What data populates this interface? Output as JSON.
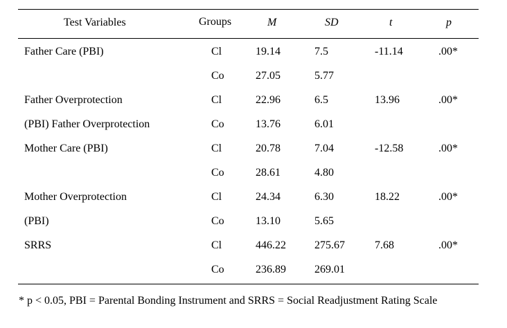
{
  "table": {
    "headers": {
      "variable": "Test Variables",
      "groups": "Groups",
      "m": "M",
      "sd": "SD",
      "t": "t",
      "p": "p"
    },
    "rows": [
      {
        "variable": "Father Care (PBI)",
        "group": "Cl",
        "m": "19.14",
        "sd": "7.5",
        "t": "-11.14",
        "p": ".00*"
      },
      {
        "variable": "",
        "group": "Co",
        "m": "27.05",
        "sd": "5.77",
        "t": "",
        "p": ""
      },
      {
        "variable": "Father Overprotection",
        "group": "Cl",
        "m": "22.96",
        "sd": "6.5",
        "t": "13.96",
        "p": ".00*"
      },
      {
        "variable": "(PBI) Father Overprotection",
        "group": "Co",
        "m": "13.76",
        "sd": "6.01",
        "t": "",
        "p": ""
      },
      {
        "variable": "Mother Care (PBI)",
        "group": "Cl",
        "m": "20.78",
        "sd": "7.04",
        "t": "-12.58",
        "p": ".00*"
      },
      {
        "variable": "",
        "group": "Co",
        "m": "28.61",
        "sd": "4.80",
        "t": "",
        "p": ""
      },
      {
        "variable": "Mother Overprotection",
        "group": "Cl",
        "m": "24.34",
        "sd": "6.30",
        "t": "18.22",
        "p": ".00*"
      },
      {
        "variable": "(PBI)",
        "group": "Co",
        "m": "13.10",
        "sd": "5.65",
        "t": "",
        "p": ""
      },
      {
        "variable": "SRRS",
        "group": "Cl",
        "m": "446.22",
        "sd": "275.67",
        "t": "7.68",
        "p": ".00*"
      },
      {
        "variable": "",
        "group": "Co",
        "m": "236.89",
        "sd": "269.01",
        "t": "",
        "p": ""
      }
    ]
  },
  "footnote": "* p < 0.05, PBI = Parental Bonding Instrument and SRRS = Social Readjustment Rating Scale"
}
